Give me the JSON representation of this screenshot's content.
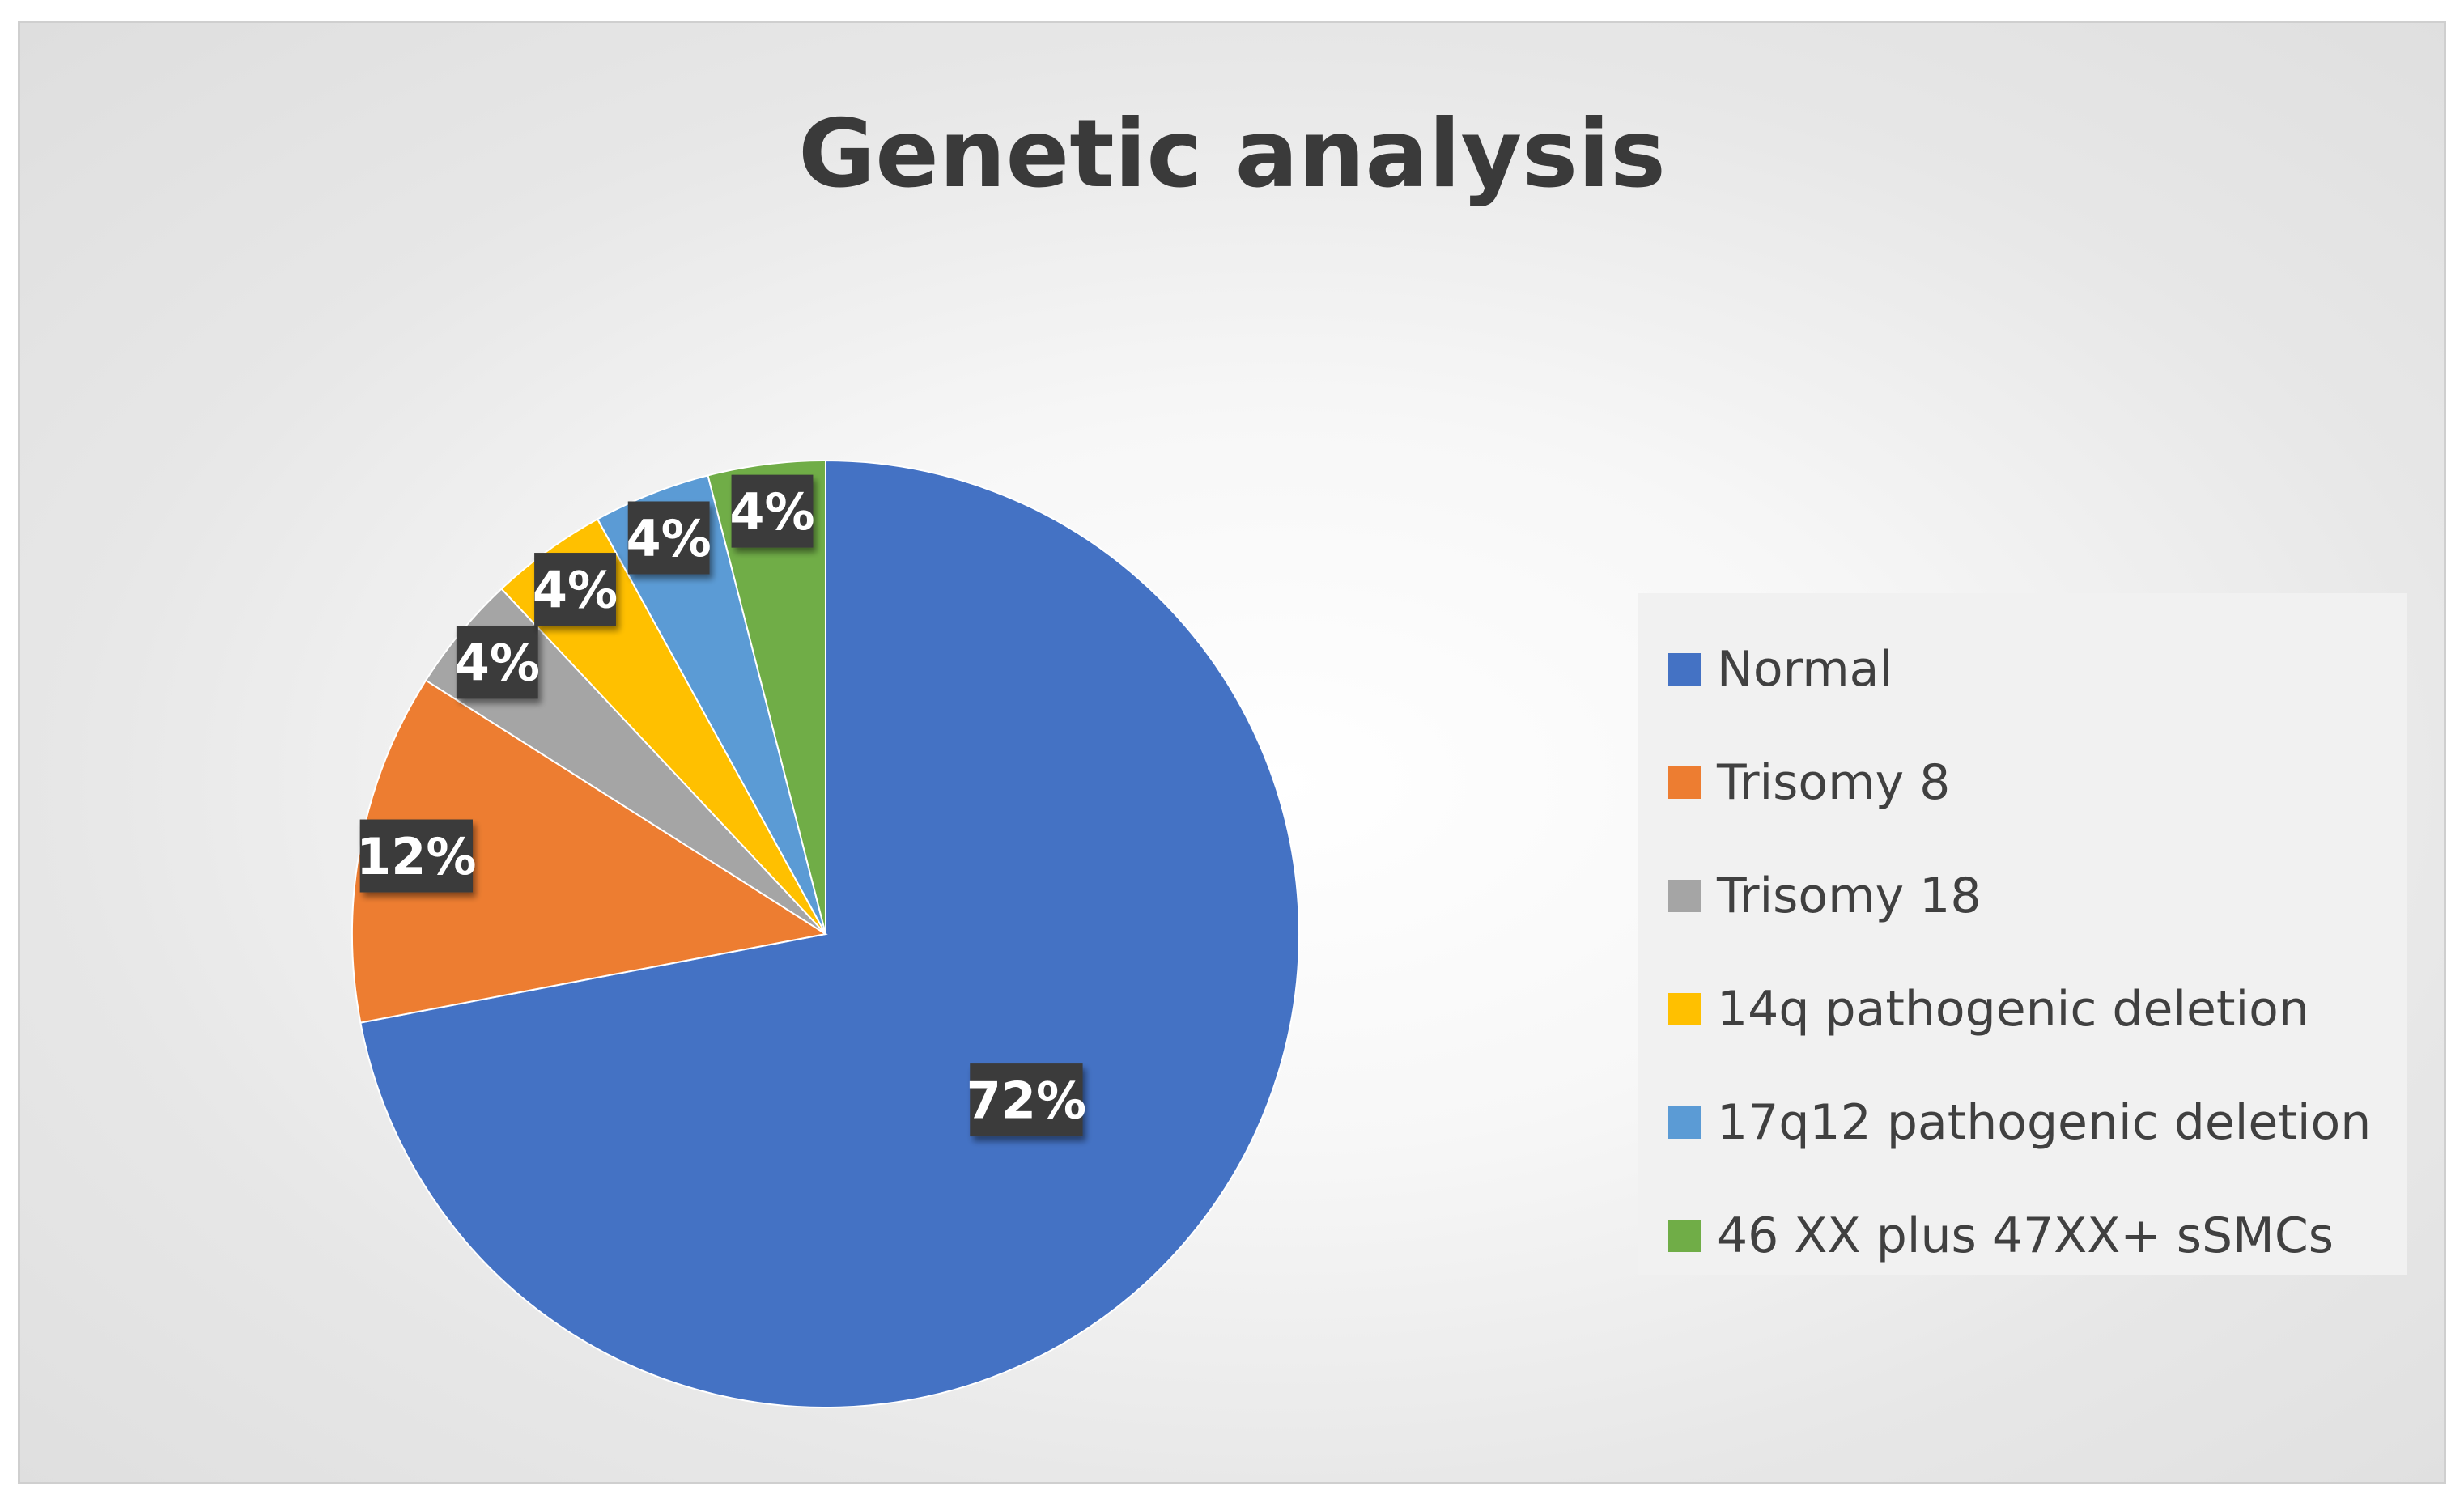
{
  "chart_data": {
    "type": "pie",
    "title": "Genetic analysis",
    "categories": [
      "Normal",
      "Trisomy 8",
      "Trisomy 18",
      "14q pathogenic deletion",
      "17q12 pathogenic deletion",
      "46 XX plus 47XX+ sSMCs"
    ],
    "values": [
      72,
      12,
      4,
      4,
      4,
      4
    ],
    "data_labels": [
      "72%",
      "12%",
      "4%",
      "4%",
      "4%",
      "4%"
    ],
    "colors": [
      "#4472C4",
      "#ED7D31",
      "#A5A5A5",
      "#FFC000",
      "#5B9BD5",
      "#70AD47"
    ],
    "legend_position": "right",
    "start_angle_deg": 0,
    "direction": "clockwise"
  }
}
